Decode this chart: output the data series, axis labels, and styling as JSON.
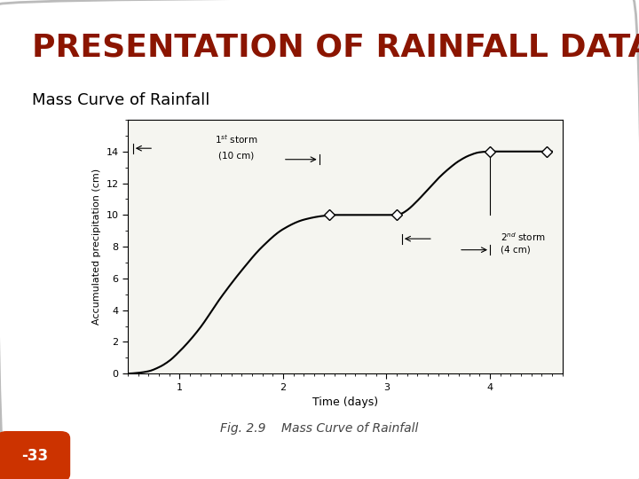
{
  "title": "PRESENTATION OF RAINFALL DATA",
  "subtitle": "Mass Curve of Rainfall",
  "fig_caption": "Fig. 2.9    Mass Curve of Rainfall",
  "xlabel": "Time (days)",
  "ylabel": "Accumulated precipitation (cm)",
  "xlim": [
    0.5,
    4.7
  ],
  "ylim": [
    0,
    16
  ],
  "yticks": [
    0,
    2,
    4,
    6,
    8,
    10,
    12,
    14
  ],
  "xticks": [
    1,
    2,
    3,
    4
  ],
  "title_color": "#8B1500",
  "slide_bg_color": "#FFFFFF",
  "border_color": "#BBBBBB",
  "page_number": "-33",
  "page_badge_color": "#CC3300",
  "storm1_label": "1st storm\n(10 cm)",
  "storm2_label": "2nd storm\n(4 cm)",
  "curve_color": "#000000",
  "chart_bg": "#F5F5F0",
  "title_fontsize": 26,
  "subtitle_fontsize": 13,
  "caption_fontsize": 10
}
